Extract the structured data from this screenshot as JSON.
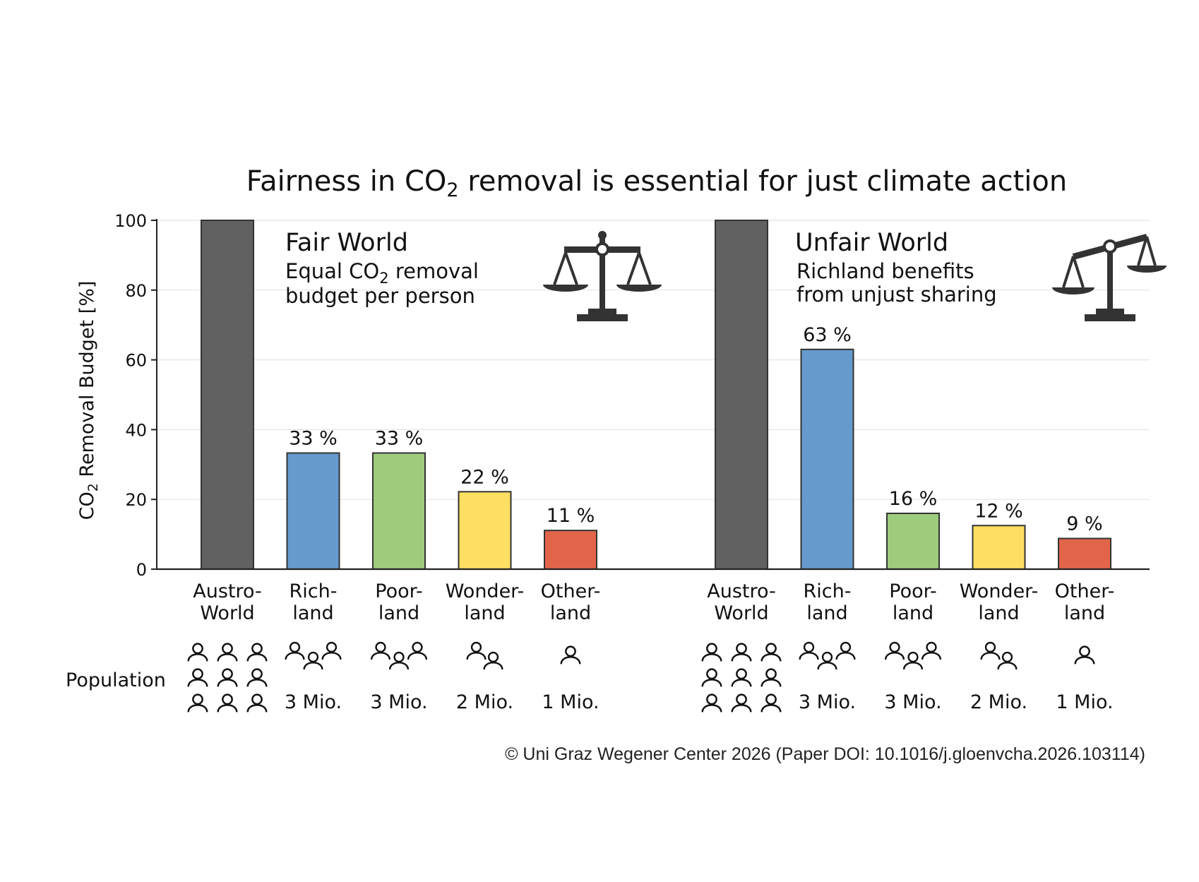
{
  "chart_data": {
    "type": "bar",
    "title_prefix": "Fairness in CO",
    "title_sub": "2",
    "title_suffix": " removal is essential for just climate action",
    "ylabel_prefix": "CO",
    "ylabel_sub": "2",
    "ylabel_suffix": " Removal Budget [%]",
    "ylim": [
      0,
      100
    ],
    "yticks": [
      0,
      20,
      40,
      60,
      80,
      100
    ],
    "grid": true,
    "population_label": "Population",
    "panels": [
      {
        "title": "Fair World",
        "subtitle_line1_prefix": "Equal CO",
        "subtitle_line1_sub": "2",
        "subtitle_line1_suffix": " removal",
        "subtitle_line2": "budget per person",
        "scale_icon": "balanced-scale-icon",
        "categories": [
          {
            "line1": "Austro-",
            "line2": "World",
            "value": 100,
            "label": "",
            "color": "#616161",
            "population": "",
            "people": 9
          },
          {
            "line1": "Rich-",
            "line2": "land",
            "value": 33.3,
            "label": "33 %",
            "color": "#6699cc",
            "population": "3 Mio.",
            "people": 3
          },
          {
            "line1": "Poor-",
            "line2": "land",
            "value": 33.3,
            "label": "33 %",
            "color": "#9ecc7e",
            "population": "3 Mio.",
            "people": 3
          },
          {
            "line1": "Wonder-",
            "line2": "land",
            "value": 22.2,
            "label": "22 %",
            "color": "#fedf62",
            "population": "2 Mio.",
            "people": 2
          },
          {
            "line1": "Other-",
            "line2": "land",
            "value": 11.1,
            "label": "11 %",
            "color": "#e2654a",
            "population": "1 Mio.",
            "people": 1
          }
        ]
      },
      {
        "title": "Unfair World",
        "subtitle_line1_prefix": "Richland benefits",
        "subtitle_line1_sub": "",
        "subtitle_line1_suffix": "",
        "subtitle_line2": "from unjust sharing",
        "scale_icon": "tilted-scale-icon",
        "categories": [
          {
            "line1": "Austro-",
            "line2": "World",
            "value": 100,
            "label": "",
            "color": "#616161",
            "population": "",
            "people": 9
          },
          {
            "line1": "Rich-",
            "line2": "land",
            "value": 63,
            "label": "63 %",
            "color": "#6699cc",
            "population": "3 Mio.",
            "people": 3
          },
          {
            "line1": "Poor-",
            "line2": "land",
            "value": 16,
            "label": "16 %",
            "color": "#9ecc7e",
            "population": "3 Mio.",
            "people": 3
          },
          {
            "line1": "Wonder-",
            "line2": "land",
            "value": 12.5,
            "label": "12 %",
            "color": "#fedf62",
            "population": "2 Mio.",
            "people": 2
          },
          {
            "line1": "Other-",
            "line2": "land",
            "value": 8.8,
            "label": "9 %",
            "color": "#e2654a",
            "population": "1 Mio.",
            "people": 1
          }
        ]
      }
    ]
  },
  "footer": {
    "copyright": "© Uni Graz Wegener Center 2026 (Paper DOI: 10.1016/j.gloenvcha.2026.103114)"
  }
}
